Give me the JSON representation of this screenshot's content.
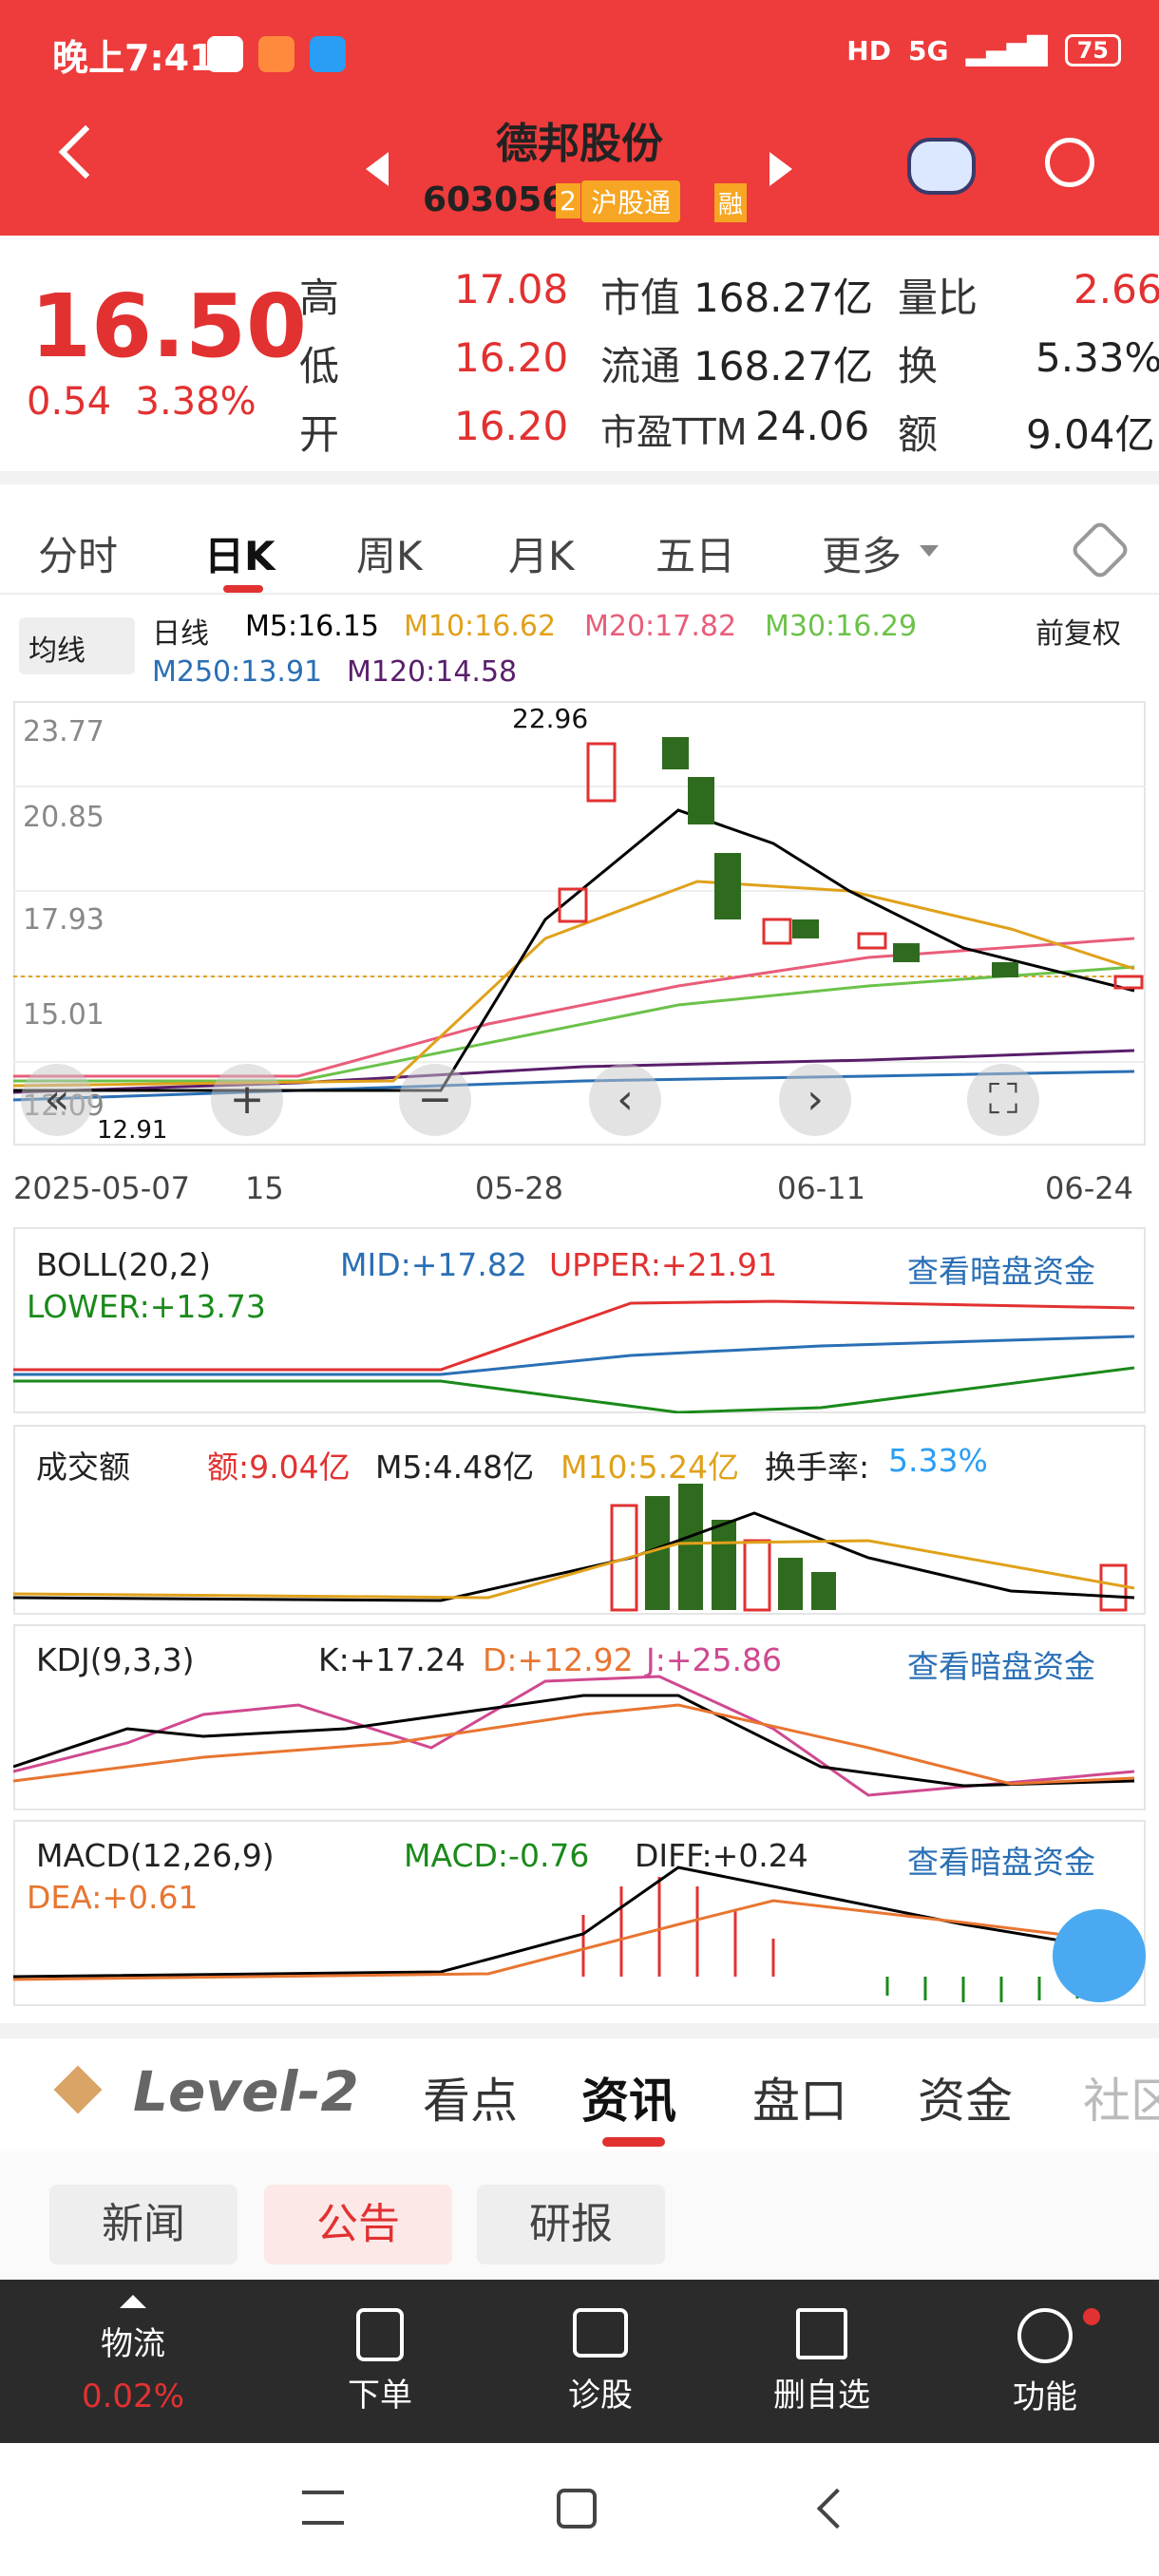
{
  "status_bar": {
    "time": "晚上7:41",
    "battery": "75",
    "signal": "5G",
    "hd": "HD"
  },
  "header": {
    "name": "德邦股份",
    "code": "603056",
    "tag": "沪股通",
    "tag_prefix": "2",
    "tag_suffix": "融"
  },
  "quote": {
    "price": "16.50",
    "change": "0.54",
    "pct": "3.38%",
    "high_label": "高",
    "high": "17.08",
    "low_label": "低",
    "low": "16.20",
    "open_label": "开",
    "open": "16.20",
    "mcap_label": "市值",
    "mcap": "168.27亿",
    "float_label": "流通",
    "float": "168.27亿",
    "pe_label": "市盈TTM",
    "pe": "24.06",
    "vr_label": "量比",
    "vr": "2.66",
    "turn_label": "换",
    "turn": "5.33%",
    "amt_label": "额",
    "amt": "9.04亿"
  },
  "ktabs": [
    "分时",
    "日K",
    "周K",
    "月K",
    "五日",
    "更多"
  ],
  "legend": {
    "selector": "均线",
    "period": "日线",
    "m5": "M5:16.15",
    "m10": "M10:16.62",
    "m20": "M20:17.82",
    "m30": "M30:16.29",
    "m250": "M250:13.91",
    "m120": "M120:14.58",
    "adj": "前复权"
  },
  "kchart": {
    "ticks": [
      "23.77",
      "20.85",
      "17.93",
      "15.01",
      "12.09"
    ],
    "max_label": "22.96",
    "min_label": "12.91",
    "dates": [
      "2025-05-07",
      "15",
      "05-28",
      "06-11",
      "06-24"
    ]
  },
  "boll": {
    "title": "BOLL(20,2)",
    "mid": "MID:+17.82",
    "upper": "UPPER:+21.91",
    "lower": "LOWER:+13.73",
    "link": "查看暗盘资金"
  },
  "vol": {
    "title": "成交额",
    "amt": "额:9.04亿",
    "m5": "M5:4.48亿",
    "m10": "M10:5.24亿",
    "turn_label": "换手率:",
    "turn": "5.33%"
  },
  "kdj": {
    "title": "KDJ(9,3,3)",
    "k": "K:+17.24",
    "d": "D:+12.92",
    "j": "J:+25.86",
    "link": "查看暗盘资金"
  },
  "macd": {
    "title": "MACD(12,26,9)",
    "macd": "MACD:-0.76",
    "diff": "DIFF:+0.24",
    "dea": "DEA:+0.61",
    "link": "查看暗盘资金"
  },
  "l2": {
    "brand": "Level-2",
    "tabs": [
      "看点",
      "资讯",
      "盘口",
      "资金",
      "社区"
    ]
  },
  "subtabs": [
    "新闻",
    "公告",
    "研报"
  ],
  "bottom": [
    {
      "label": "物流",
      "sub": "0.02%"
    },
    {
      "label": "下单"
    },
    {
      "label": "诊股"
    },
    {
      "label": "删自选"
    },
    {
      "label": "功能"
    }
  ],
  "colors": {
    "red": "#e23131",
    "green": "#2f6b1e",
    "m5": "#000000",
    "m10": "#e0a11a",
    "m20": "#e85d7a",
    "m30": "#6cc24a",
    "m250": "#2a6fb5",
    "m120": "#5a1e6b"
  }
}
